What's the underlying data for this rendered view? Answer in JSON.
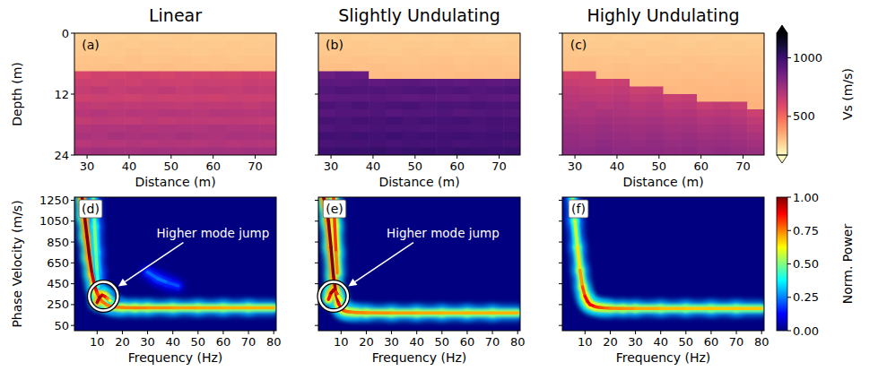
{
  "chart_data": [
    {
      "type": "heatmap",
      "title": "Linear",
      "panel": "(a)",
      "xlabel": "Distance (m)",
      "ylabel": "Depth (m)",
      "xlim": [
        27,
        75
      ],
      "ylim": [
        24,
        0
      ],
      "xticks": [
        30,
        40,
        50,
        60,
        70
      ],
      "yticks": [
        0,
        12,
        24
      ],
      "color": "magma_r",
      "x_edges": [
        27,
        31,
        35,
        39,
        43,
        47,
        51,
        55,
        59,
        63,
        67,
        71,
        75
      ],
      "y_edges": [
        0,
        1.5,
        3,
        4.5,
        6,
        7.5,
        9,
        10.5,
        12,
        13.5,
        15,
        16.5,
        18,
        19.5,
        21,
        22.5,
        24
      ],
      "cells": [
        [
          275,
          280,
          278,
          282,
          276,
          280,
          284,
          279,
          281,
          277,
          283,
          280
        ],
        [
          285,
          283,
          288,
          284,
          290,
          286,
          282,
          287,
          285,
          289,
          284,
          286
        ],
        [
          292,
          288,
          290,
          295,
          289,
          293,
          291,
          288,
          294,
          290,
          292,
          289
        ],
        [
          298,
          300,
          296,
          302,
          297,
          299,
          303,
          298,
          300,
          296,
          301,
          299
        ],
        [
          305,
          302,
          308,
          304,
          306,
          310,
          303,
          307,
          305,
          309,
          304,
          306
        ],
        [
          610,
          625,
          615,
          630,
          620,
          612,
          628,
          618,
          624,
          616,
          630,
          620
        ],
        [
          640,
          628,
          645,
          635,
          650,
          638,
          632,
          646,
          640,
          636,
          648,
          642
        ],
        [
          655,
          668,
          650,
          662,
          658,
          670,
          652,
          664,
          660,
          656,
          668,
          662
        ],
        [
          630,
          640,
          636,
          628,
          645,
          632,
          640,
          638,
          630,
          644,
          636,
          640
        ],
        [
          670,
          660,
          675,
          665,
          672,
          668,
          660,
          674,
          666,
          670,
          662,
          676
        ],
        [
          690,
          700,
          685,
          695,
          688,
          698,
          692,
          686,
          700,
          694,
          690,
          696
        ],
        [
          660,
          672,
          668,
          664,
          676,
          662,
          670,
          674,
          666,
          672,
          668,
          664
        ],
        [
          700,
          710,
          705,
          715,
          702,
          712,
          708,
          704,
          716,
          706,
          710,
          702
        ],
        [
          720,
          712,
          728,
          718,
          724,
          716,
          730,
          720,
          714,
          726,
          718,
          724
        ],
        [
          690,
          700,
          695,
          705,
          692,
          702,
          698,
          694,
          706,
          696,
          700,
          692
        ],
        [
          730,
          740,
          735,
          728,
          742,
          736,
          732,
          738,
          744,
          734,
          740,
          736
        ]
      ]
    },
    {
      "type": "heatmap",
      "title": "Slightly Undulating",
      "panel": "(b)",
      "xlabel": "Distance (m)",
      "tick_labels": "x",
      "xlim": [
        27,
        75
      ],
      "ylim": [
        24,
        0
      ],
      "xticks": [
        30,
        40,
        50,
        60,
        70
      ],
      "yticks": [
        0,
        12,
        24
      ],
      "color": "magma_r",
      "x_edges": [
        27,
        31,
        35,
        39,
        43,
        47,
        51,
        55,
        59,
        63,
        67,
        71,
        75
      ],
      "y_edges": [
        0,
        1.5,
        3,
        4.5,
        6,
        7.5,
        9,
        10.5,
        12,
        13.5,
        15,
        16.5,
        18,
        19.5,
        21,
        22.5,
        24
      ],
      "cells": [
        [
          278,
          282,
          276,
          280,
          284,
          279,
          281,
          277,
          283,
          280,
          275,
          279
        ],
        [
          286,
          284,
          290,
          285,
          283,
          288,
          287,
          284,
          289,
          285,
          282,
          288
        ],
        [
          290,
          294,
          289,
          292,
          288,
          295,
          291,
          293,
          289,
          294,
          290,
          292
        ],
        [
          300,
          297,
          302,
          298,
          301,
          296,
          299,
          303,
          297,
          300,
          302,
          298
        ],
        [
          306,
          309,
          304,
          308,
          305,
          303,
          307,
          310,
          304,
          306,
          308,
          305
        ],
        [
          880,
          900,
          890,
          312,
          315,
          310,
          314,
          311,
          316,
          313,
          309,
          312
        ],
        [
          920,
          910,
          930,
          905,
          915,
          925,
          912,
          918,
          908,
          922,
          914,
          920
        ],
        [
          940,
          955,
          945,
          950,
          935,
          948,
          958,
          942,
          952,
          938,
          946,
          954
        ],
        [
          910,
          920,
          915,
          925,
          918,
          908,
          922,
          916,
          912,
          926,
          920,
          914
        ],
        [
          960,
          950,
          968,
          955,
          962,
          970,
          952,
          964,
          958,
          966,
          956,
          960
        ],
        [
          930,
          942,
          936,
          948,
          932,
          944,
          938,
          950,
          934,
          940,
          946,
          936
        ],
        [
          975,
          965,
          980,
          970,
          985,
          968,
          978,
          972,
          982,
          966,
          976,
          970
        ],
        [
          950,
          962,
          955,
          968,
          958,
          964,
          952,
          966,
          960,
          956,
          970,
          962
        ],
        [
          990,
          980,
          995,
          985,
          1000,
          982,
          992,
          988,
          996,
          984,
          990,
          994
        ],
        [
          965,
          975,
          970,
          980,
          968,
          978,
          972,
          984,
          966,
          976,
          982,
          970
        ],
        [
          1000,
          1010,
          1005,
          1015,
          998,
          1008,
          1012,
          1002,
          1016,
          1006,
          1004,
          1010
        ]
      ]
    },
    {
      "type": "heatmap",
      "title": "Highly Undulating",
      "panel": "(c)",
      "xlabel": "Distance (m)",
      "tick_labels": "x",
      "xlim": [
        27,
        75
      ],
      "ylim": [
        24,
        0
      ],
      "xticks": [
        30,
        40,
        50,
        60,
        70
      ],
      "yticks": [
        0,
        12,
        24
      ],
      "color": "magma_r",
      "x_edges": [
        27,
        31,
        35,
        39,
        43,
        47,
        51,
        55,
        59,
        63,
        67,
        71,
        75
      ],
      "y_edges": [
        0,
        1.5,
        3,
        4.5,
        6,
        7.5,
        9,
        10.5,
        12,
        13.5,
        15,
        16.5,
        18,
        19.5,
        21,
        22.5,
        24
      ],
      "cells": [
        [
          280,
          277,
          283,
          279,
          281,
          276,
          284,
          280,
          278,
          282,
          279,
          281
        ],
        [
          287,
          285,
          282,
          288,
          284,
          290,
          286,
          283,
          289,
          285,
          287,
          284
        ],
        [
          293,
          289,
          292,
          290,
          295,
          288,
          291,
          294,
          290,
          292,
          289,
          293
        ],
        [
          299,
          302,
          297,
          301,
          298,
          300,
          296,
          303,
          299,
          297,
          301,
          300
        ],
        [
          304,
          307,
          305,
          309,
          303,
          306,
          308,
          305,
          310,
          304,
          307,
          305
        ],
        [
          620,
          635,
          312,
          315,
          310,
          313,
          311,
          314,
          309,
          316,
          312,
          314
        ],
        [
          650,
          640,
          630,
          645,
          318,
          320,
          316,
          322,
          319,
          317,
          321,
          318
        ],
        [
          670,
          660,
          655,
          668,
          640,
          650,
          325,
          322,
          327,
          324,
          326,
          323
        ],
        [
          690,
          680,
          675,
          685,
          662,
          672,
          645,
          655,
          330,
          328,
          332,
          329
        ],
        [
          700,
          712,
          695,
          705,
          688,
          698,
          670,
          680,
          650,
          660,
          645,
          335
        ],
        [
          720,
          710,
          725,
          715,
          705,
          712,
          695,
          702,
          680,
          690,
          672,
          640
        ],
        [
          740,
          732,
          745,
          735,
          728,
          738,
          718,
          726,
          705,
          715,
          698,
          668
        ],
        [
          755,
          748,
          760,
          750,
          745,
          752,
          738,
          744,
          725,
          735,
          720,
          695
        ],
        [
          770,
          762,
          775,
          765,
          758,
          768,
          752,
          760,
          745,
          752,
          738,
          718
        ],
        [
          780,
          775,
          788,
          778,
          772,
          782,
          768,
          774,
          760,
          766,
          755,
          740
        ],
        [
          795,
          788,
          800,
          790,
          785,
          792,
          780,
          786,
          775,
          780,
          770,
          760
        ]
      ],
      "colorbar": {
        "label": "Vs (m/s)",
        "range": [
          170,
          1210
        ],
        "ticks": [
          500,
          1000
        ]
      }
    },
    {
      "type": "dispersion",
      "panel": "(d)",
      "xlabel": "Frequency (Hz)",
      "ylabel": "Phase Velocity (m/s)",
      "xlim": [
        1,
        81
      ],
      "ylim": [
        0,
        1280
      ],
      "xticks": [
        10,
        20,
        30,
        40,
        50,
        60,
        70,
        80
      ],
      "yticks": [
        50,
        250,
        450,
        650,
        850,
        1050,
        1250
      ],
      "color": "jet",
      "series": [
        {
          "x": [
            4,
            5,
            6,
            7,
            8,
            9,
            10,
            11,
            12,
            14,
            16,
            18,
            20,
            25,
            30,
            40,
            50,
            60,
            70,
            80
          ],
          "values": [
            1280,
            1100,
            900,
            700,
            540,
            430,
            360,
            310,
            280,
            245,
            230,
            225,
            222,
            220,
            220,
            220,
            220,
            220,
            220,
            220
          ],
          "power": [
            1,
            1,
            1,
            1,
            0.95,
            0.9,
            0.85,
            0.8,
            0.78,
            0.75,
            0.75,
            0.75,
            0.75,
            0.75,
            0.75,
            0.72,
            0.72,
            0.7,
            0.7,
            0.7
          ]
        },
        {
          "x": [
            8.5,
            9,
            9.5,
            10,
            10.5
          ],
          "values": [
            1280,
            1000,
            750,
            560,
            420
          ],
          "power": [
            0.45,
            0.5,
            0.5,
            0.45,
            0.4
          ]
        },
        {
          "x": [
            10,
            11,
            12,
            13,
            14,
            15,
            16,
            17
          ],
          "values": [
            270,
            320,
            340,
            330,
            310,
            290,
            270,
            255
          ],
          "power": [
            0.9,
            1,
            0.95,
            0.9,
            0.8,
            0.7,
            0.55,
            0.4
          ]
        },
        {
          "x": [
            30,
            34,
            38,
            42
          ],
          "values": [
            560,
            500,
            460,
            430
          ],
          "power": [
            0.2,
            0.25,
            0.22,
            0.18
          ]
        }
      ],
      "annotations": [
        {
          "text": "Higher mode jump",
          "x": 12.5,
          "y": 330
        }
      ]
    },
    {
      "type": "dispersion",
      "panel": "(e)",
      "xlabel": "Frequency (Hz)",
      "tick_labels": "x",
      "xlim": [
        1,
        81
      ],
      "ylim": [
        0,
        1280
      ],
      "xticks": [
        10,
        20,
        30,
        40,
        50,
        60,
        70,
        80
      ],
      "yticks": [
        50,
        250,
        450,
        650,
        850,
        1050,
        1250
      ],
      "color": "jet",
      "series": [
        {
          "x": [
            3,
            4,
            5,
            6,
            7,
            8,
            9,
            10,
            11,
            12,
            14,
            16,
            20,
            30,
            40,
            50,
            60,
            70,
            80
          ],
          "values": [
            1280,
            1200,
            1050,
            800,
            520,
            350,
            260,
            215,
            195,
            185,
            178,
            175,
            172,
            170,
            170,
            170,
            170,
            170,
            170
          ],
          "power": [
            1,
            1,
            1,
            1,
            1,
            0.95,
            0.9,
            0.85,
            0.8,
            0.8,
            0.75,
            0.75,
            0.75,
            0.72,
            0.72,
            0.7,
            0.7,
            0.7,
            0.7
          ]
        },
        {
          "x": [
            7,
            7.5,
            8,
            8.5
          ],
          "values": [
            1280,
            1000,
            750,
            550
          ],
          "power": [
            0.8,
            0.85,
            0.8,
            0.7
          ]
        },
        {
          "x": [
            5,
            6,
            7,
            8,
            9,
            10
          ],
          "values": [
            300,
            360,
            390,
            370,
            330,
            290
          ],
          "power": [
            0.8,
            0.95,
            1,
            0.9,
            0.75,
            0.5
          ]
        }
      ],
      "annotations": [
        {
          "text": "Higher mode jump",
          "x": 7,
          "y": 330
        }
      ]
    },
    {
      "type": "dispersion",
      "panel": "(f)",
      "xlabel": "Frequency (Hz)",
      "tick_labels": "x",
      "xlim": [
        1,
        81
      ],
      "ylim": [
        0,
        1280
      ],
      "xticks": [
        10,
        20,
        30,
        40,
        50,
        60,
        70,
        80
      ],
      "yticks": [
        50,
        250,
        450,
        650,
        850,
        1050,
        1250
      ],
      "color": "jet",
      "series": [
        {
          "x": [
            5,
            6,
            7,
            8,
            9,
            10,
            11,
            12,
            14,
            16,
            18,
            20,
            25,
            30,
            40,
            50,
            60,
            70,
            80
          ],
          "values": [
            1280,
            1050,
            800,
            580,
            420,
            330,
            280,
            250,
            230,
            222,
            218,
            215,
            213,
            212,
            212,
            212,
            212,
            212,
            212
          ],
          "power": [
            0.5,
            0.55,
            0.6,
            0.7,
            0.75,
            0.85,
            0.9,
            0.9,
            0.85,
            0.8,
            0.8,
            0.75,
            0.75,
            0.72,
            0.7,
            0.68,
            0.68,
            0.68,
            0.68
          ]
        }
      ],
      "colorbar": {
        "label": "Norm. Power",
        "range": [
          0,
          1
        ],
        "ticks": [
          {
            "value": 0,
            "label": "0.00"
          },
          {
            "value": 0.25,
            "label": "0.25"
          },
          {
            "value": 0.5,
            "label": "0.50"
          },
          {
            "value": 0.75,
            "label": "0.75"
          },
          {
            "value": 1,
            "label": "1.00"
          }
        ]
      }
    }
  ]
}
